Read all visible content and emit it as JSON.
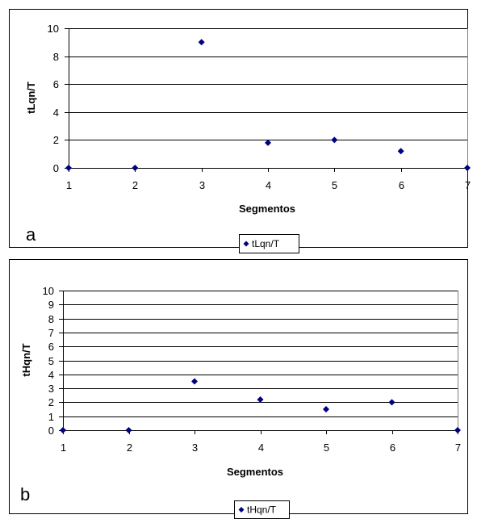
{
  "chart_data": [
    {
      "type": "scatter",
      "panel_label": "a",
      "xlabel": "Segmentos",
      "ylabel": "tLqn/T",
      "xlim": [
        1,
        7
      ],
      "ylim": [
        0,
        10
      ],
      "x_ticks": [
        "1",
        "2",
        "3",
        "4",
        "5",
        "6",
        "7"
      ],
      "y_ticks": [
        "0",
        "2",
        "4",
        "6",
        "8",
        "10"
      ],
      "grid": "horizontal",
      "legend": {
        "position": "bottom",
        "entries": [
          "tLqn/T"
        ]
      },
      "series": [
        {
          "name": "tLqn/T",
          "color": "#000080",
          "x": [
            1,
            2,
            3,
            4,
            5,
            6,
            7
          ],
          "y": [
            0,
            0,
            9,
            1.8,
            2,
            1.2,
            0
          ]
        }
      ]
    },
    {
      "type": "scatter",
      "panel_label": "b",
      "xlabel": "Segmentos",
      "ylabel": "tHqn/T",
      "xlim": [
        1,
        7
      ],
      "ylim": [
        0,
        10
      ],
      "x_ticks": [
        "1",
        "2",
        "3",
        "4",
        "5",
        "6",
        "7"
      ],
      "y_ticks": [
        "0",
        "1",
        "2",
        "3",
        "4",
        "5",
        "6",
        "7",
        "8",
        "9",
        "10"
      ],
      "grid": "horizontal",
      "legend": {
        "position": "bottom",
        "entries": [
          "tHqn/T"
        ]
      },
      "series": [
        {
          "name": "tHqn/T",
          "color": "#000080",
          "x": [
            1,
            2,
            3,
            4,
            5,
            6,
            7
          ],
          "y": [
            0,
            0,
            3.5,
            2.2,
            1.5,
            2,
            0
          ]
        }
      ]
    }
  ]
}
